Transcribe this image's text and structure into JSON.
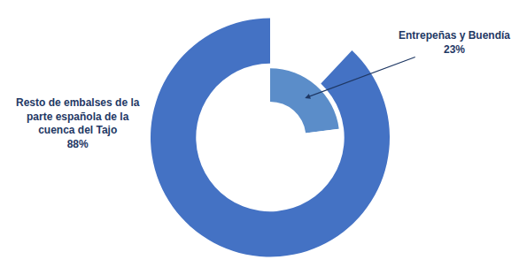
{
  "chart_data": {
    "type": "pie",
    "series": [
      {
        "values": [
          12,
          88
        ],
        "colors": [
          "#FFFFFF",
          "#4472C4"
        ]
      },
      {
        "values": [
          23,
          77
        ],
        "colors": [
          "#5B8DC9",
          "#FFFFFF"
        ]
      }
    ],
    "annotations": [
      {
        "text": "Entrepeñas y Buendía\n23%",
        "color": "#1F3864"
      },
      {
        "text": "Resto de embalses de la\nparte española de la\ncuenca del Tajo\n88%",
        "color": "#1F3864"
      }
    ]
  }
}
